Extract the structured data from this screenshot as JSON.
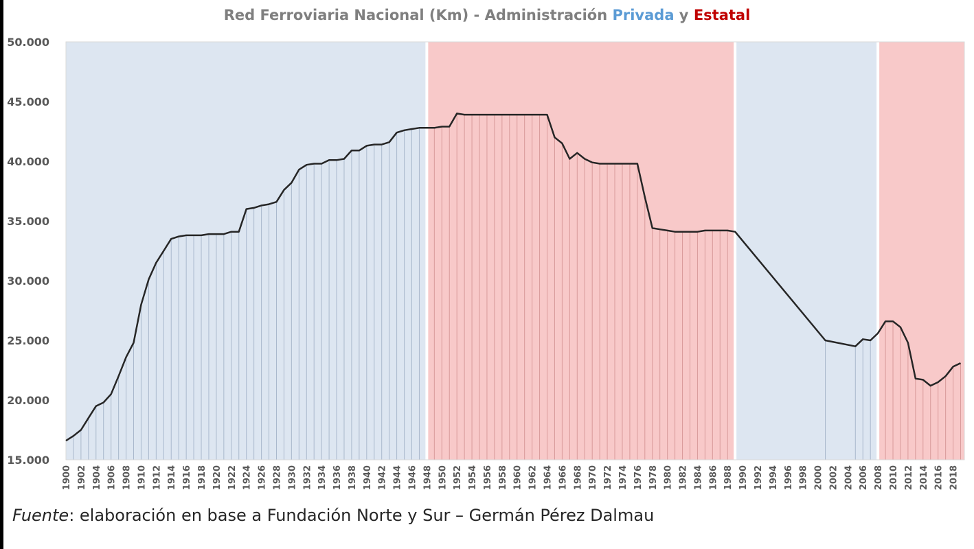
{
  "title": {
    "prefix": "Red Ferroviaria Nacional (Km) - Administración ",
    "privada": "Privada",
    "conjunction": " y ",
    "estatal": "Estatal"
  },
  "source": {
    "label": "Fuente",
    "text": ": elaboración en base a Fundación Norte y Sur – Germán Pérez Dalmau"
  },
  "colors": {
    "privada": "#5b9bd5",
    "estatal": "#c00000",
    "privada_band": "#dde6f1",
    "estatal_band": "#f8c9c9",
    "line": "#262626",
    "title_gray": "#7f7f7f"
  },
  "chart_data": {
    "type": "line",
    "title": "Red Ferroviaria Nacional (Km) - Administración Privada y Estatal",
    "xlabel": "",
    "ylabel": "",
    "xlim": [
      1900,
      2019
    ],
    "ylim": [
      15000,
      50000
    ],
    "yticks": [
      15000,
      20000,
      25000,
      30000,
      35000,
      40000,
      45000,
      50000
    ],
    "ytick_labels": [
      "15.000",
      "20.000",
      "25.000",
      "30.000",
      "35.000",
      "40.000",
      "45.000",
      "50.000"
    ],
    "xtick_labels": [
      "1900",
      "1902",
      "1904",
      "1906",
      "1908",
      "1910",
      "1912",
      "1914",
      "1916",
      "1918",
      "1920",
      "1922",
      "1924",
      "1926",
      "1928",
      "1930",
      "1932",
      "1934",
      "1936",
      "1938",
      "1940",
      "1942",
      "1944",
      "1946",
      "1948",
      "1950",
      "1952",
      "1954",
      "1956",
      "1958",
      "1960",
      "1962",
      "1964",
      "1966",
      "1968",
      "1970",
      "1972",
      "1974",
      "1976",
      "1978",
      "1980",
      "1982",
      "1984",
      "1986",
      "1988",
      "1990",
      "1992",
      "1994",
      "1996",
      "1998",
      "2000",
      "2002",
      "2004",
      "2006",
      "2008",
      "2010",
      "2012",
      "2014",
      "2016",
      "2018"
    ],
    "periods": [
      {
        "administracion": "Privada",
        "from": 1900,
        "to": 1948
      },
      {
        "administracion": "Estatal",
        "from": 1948,
        "to": 1989
      },
      {
        "administracion": "Privada",
        "from": 1989,
        "to": 2008
      },
      {
        "administracion": "Estatal",
        "from": 2008,
        "to": 2019
      }
    ],
    "series": [
      {
        "x": [
          1900,
          1901,
          1902,
          1903,
          1904,
          1905,
          1906,
          1907,
          1908,
          1909,
          1910,
          1911,
          1912,
          1913,
          1914,
          1915,
          1916,
          1917,
          1918,
          1919,
          1920,
          1921,
          1922,
          1923,
          1924,
          1925,
          1926,
          1927,
          1928,
          1929,
          1930,
          1931,
          1932,
          1933,
          1934,
          1935,
          1936,
          1937,
          1938,
          1939,
          1940,
          1941,
          1942,
          1943,
          1944,
          1945,
          1946,
          1947,
          1948,
          1949,
          1950,
          1951,
          1952,
          1953,
          1954,
          1955,
          1956,
          1957,
          1958,
          1959,
          1960,
          1961,
          1962,
          1963,
          1964,
          1965,
          1966,
          1967,
          1968,
          1969,
          1970,
          1971,
          1972,
          1973,
          1974,
          1975,
          1976,
          1977,
          1978,
          1979,
          1980,
          1981,
          1982,
          1983,
          1984,
          1985,
          1986,
          1987,
          1988,
          1989,
          2001,
          2005,
          2006,
          2007,
          2008,
          2009,
          2010,
          2011,
          2012,
          2013,
          2014,
          2015,
          2016,
          2017,
          2018,
          2019
        ],
        "values": [
          16600,
          17000,
          17500,
          18500,
          19500,
          19800,
          20500,
          22000,
          23600,
          24800,
          28000,
          30100,
          31500,
          32500,
          33500,
          33700,
          33800,
          33800,
          33800,
          33900,
          33900,
          33900,
          34100,
          34100,
          36000,
          36100,
          36300,
          36400,
          36600,
          37600,
          38200,
          39300,
          39700,
          39800,
          39800,
          40100,
          40100,
          40200,
          40900,
          40900,
          41300,
          41400,
          41400,
          41600,
          42400,
          42600,
          42700,
          42800,
          42800,
          42800,
          42900,
          42900,
          44000,
          43900,
          43900,
          43900,
          43900,
          43900,
          43900,
          43900,
          43900,
          43900,
          43900,
          43900,
          43900,
          42000,
          41500,
          40200,
          40700,
          40200,
          39900,
          39800,
          39800,
          39800,
          39800,
          39800,
          39800,
          37000,
          34400,
          34300,
          34200,
          34100,
          34100,
          34100,
          34100,
          34200,
          34200,
          34200,
          34200,
          34100,
          25000,
          24500,
          25100,
          25000,
          25600,
          26600,
          26600,
          26100,
          24800,
          21800,
          21700,
          21200,
          21500,
          22000,
          22800,
          23100
        ]
      }
    ]
  }
}
